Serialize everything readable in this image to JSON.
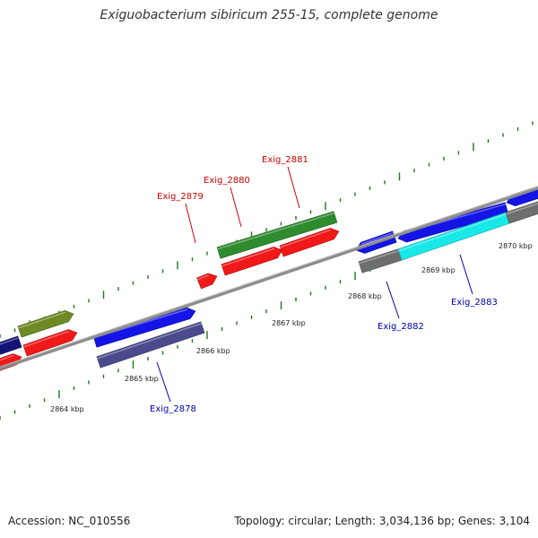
{
  "title": "Exiguobacterium sibiricum 255-15, complete genome",
  "footer": {
    "accession": "Accession: NC_010556",
    "summary": "Topology: circular; Length: 3,034,136 bp; Genes: 3,104"
  },
  "colors": {
    "backbone": "#8c8c8c",
    "ticks": "#1a7a1a",
    "label_forward": "#cc0000",
    "label_reverse": "#0000aa",
    "red": "#f01818",
    "green": "#2e8b2e",
    "olive": "#6e8a24",
    "blue": "#1414e6",
    "navy": "#141478",
    "slate": "#4a4a8c",
    "cyan": "#18e8e8",
    "gray": "#6e6e6e"
  },
  "scale": {
    "labels": [
      "2864 kbp",
      "2865 kbp",
      "2866 kbp",
      "2867 kbp",
      "2868 kbp",
      "2869 kbp",
      "2870 kbp"
    ]
  },
  "genes": [
    {
      "label": "Exig_2878",
      "strand": "reverse"
    },
    {
      "label": "Exig_2879",
      "strand": "forward"
    },
    {
      "label": "Exig_2880",
      "strand": "forward"
    },
    {
      "label": "Exig_2881",
      "strand": "forward"
    },
    {
      "label": "Exig_2882",
      "strand": "reverse"
    },
    {
      "label": "Exig_2883",
      "strand": "reverse"
    }
  ]
}
